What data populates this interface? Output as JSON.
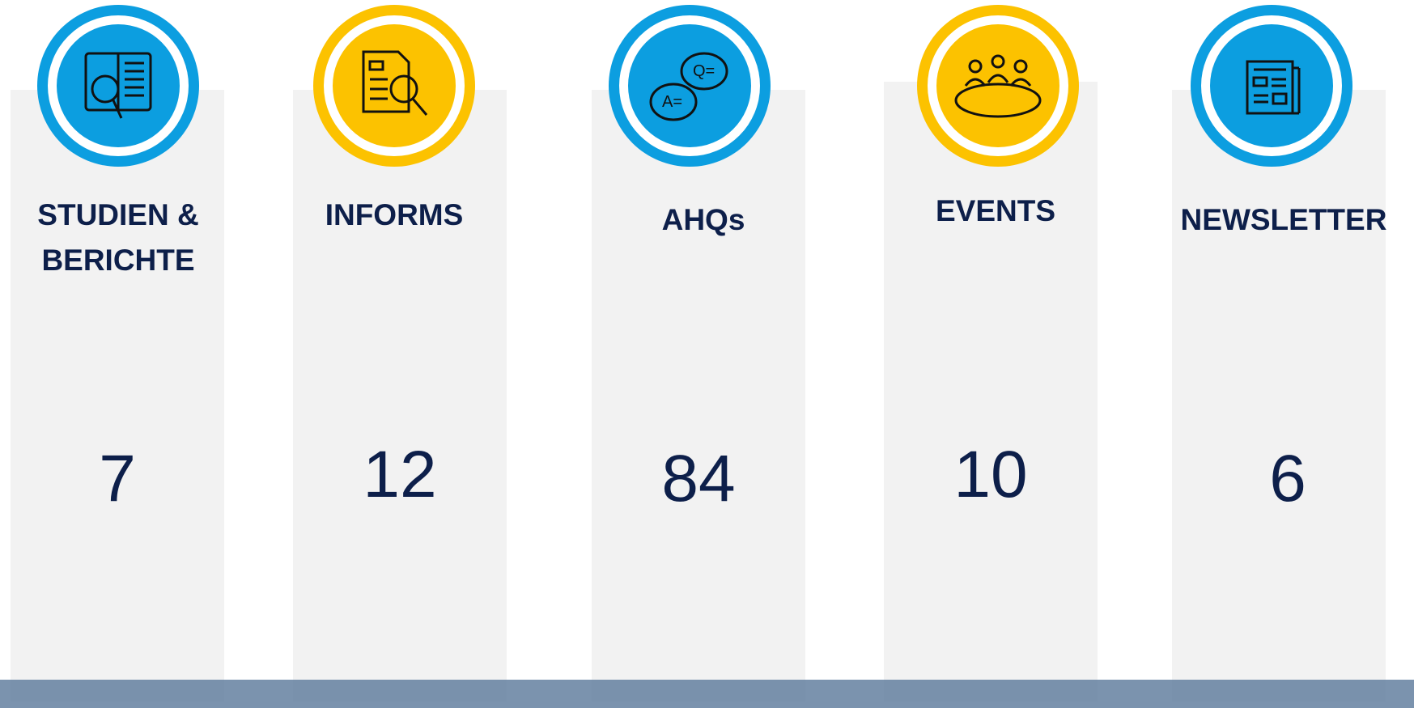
{
  "cards": [
    {
      "title": "STUDIEN & BERICHTE",
      "count": 7
    },
    {
      "title": "INFORMS",
      "count": 12
    },
    {
      "title": "AHQs",
      "count": 84
    },
    {
      "title": "EVENTS",
      "count": 10
    },
    {
      "title": "NEWSLETTER",
      "count": 6
    }
  ]
}
